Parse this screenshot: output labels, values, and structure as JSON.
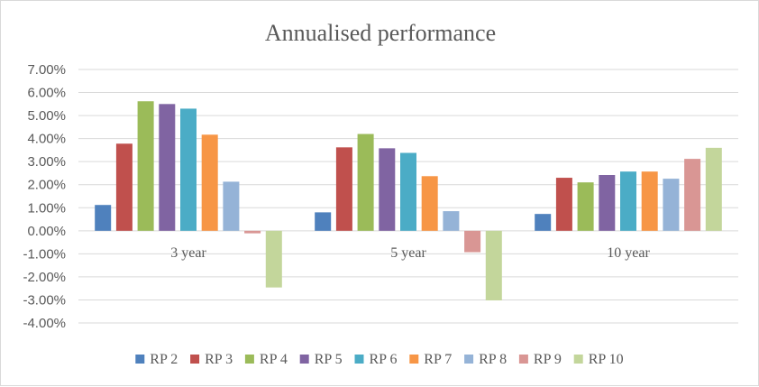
{
  "chart_data": {
    "type": "bar",
    "title": "Annualised performance",
    "xlabel": "",
    "ylabel": "",
    "ylim": [
      -0.04,
      0.07
    ],
    "ytick_labels": [
      "7.00%",
      "6.00%",
      "5.00%",
      "4.00%",
      "3.00%",
      "2.00%",
      "1.00%",
      "0.00%",
      "-1.00%",
      "-2.00%",
      "-3.00%",
      "-4.00%"
    ],
    "yticks": [
      0.07,
      0.06,
      0.05,
      0.04,
      0.03,
      0.02,
      0.01,
      0.0,
      -0.01,
      -0.02,
      -0.03,
      -0.04
    ],
    "categories": [
      "3 year",
      "5 year",
      "10 year"
    ],
    "grid": true,
    "legend_position": "bottom",
    "series": [
      {
        "name": "RP 2",
        "color": "#4f81bd",
        "values": [
          0.0112,
          0.008,
          0.0073
        ]
      },
      {
        "name": "RP 3",
        "color": "#c0504d",
        "values": [
          0.0378,
          0.0362,
          0.023
        ]
      },
      {
        "name": "RP 4",
        "color": "#9bbb59",
        "values": [
          0.0562,
          0.042,
          0.021
        ]
      },
      {
        "name": "RP 5",
        "color": "#8064a2",
        "values": [
          0.055,
          0.0358,
          0.0242
        ]
      },
      {
        "name": "RP 6",
        "color": "#4bacc6",
        "values": [
          0.053,
          0.0338,
          0.0257
        ]
      },
      {
        "name": "RP 7",
        "color": "#f79646",
        "values": [
          0.0417,
          0.0237,
          0.0257
        ]
      },
      {
        "name": "RP 8",
        "color": "#95b3d7",
        "values": [
          0.0213,
          0.0085,
          0.0226
        ]
      },
      {
        "name": "RP 9",
        "color": "#d99694",
        "values": [
          -0.0011,
          -0.0093,
          0.0312
        ]
      },
      {
        "name": "RP 10",
        "color": "#c3d69b",
        "values": [
          -0.0246,
          -0.0302,
          0.036
        ]
      }
    ]
  }
}
